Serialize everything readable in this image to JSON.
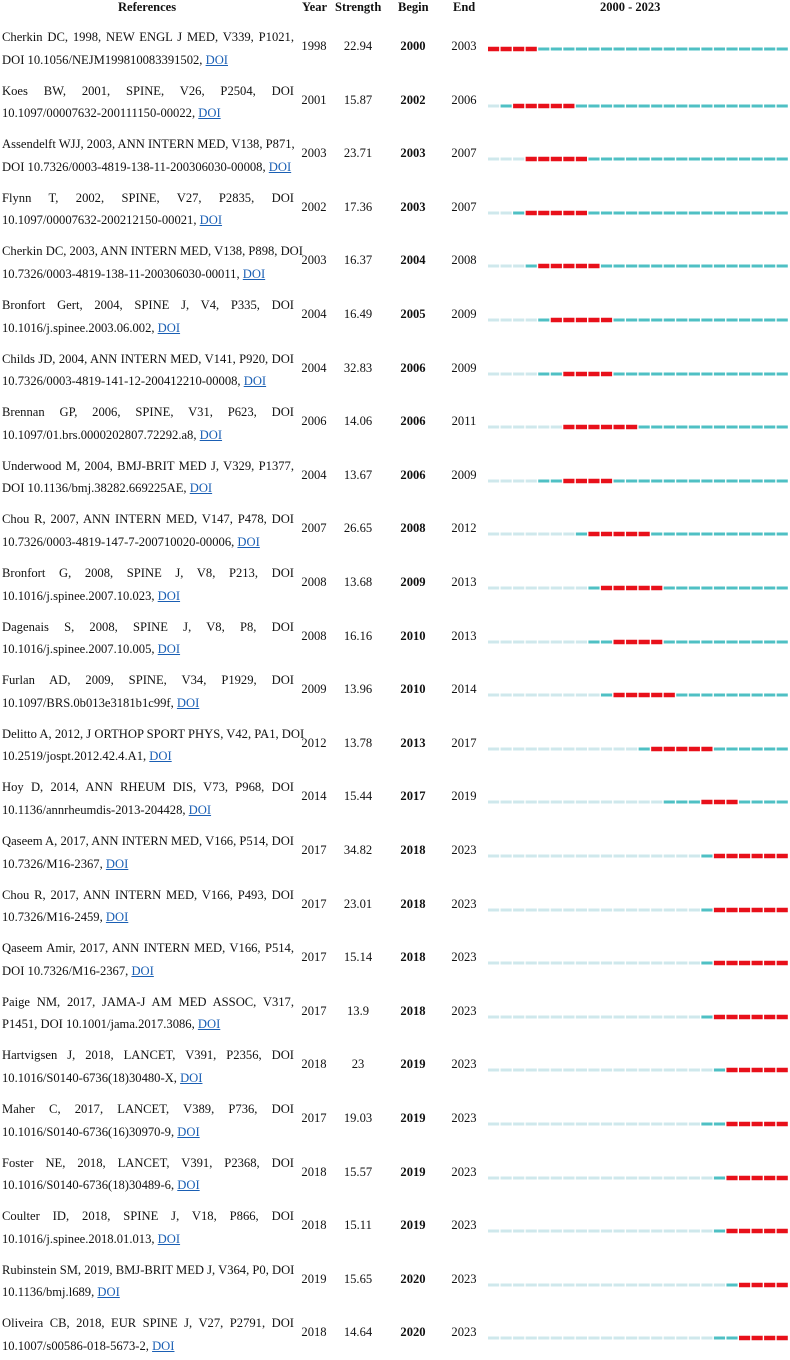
{
  "header": {
    "references": "References",
    "year": "Year",
    "strength": "Strength",
    "begin": "Begin",
    "end": "End",
    "timeline": "2000 - 2023"
  },
  "doi_label": "DOI",
  "colors": {
    "before_publication": "#cfe8ec",
    "active": "#4fc0c4",
    "burst": "#e8101a"
  },
  "chart_data": {
    "type": "table",
    "title": "",
    "timeline_start": 2000,
    "timeline_end": 2023,
    "columns": [
      "References",
      "Year",
      "Strength",
      "Begin",
      "End",
      "2000 - 2023"
    ],
    "rows": [
      {
        "ref_line1": "Cherkin DC, 1998, NEW ENGL J MED, V339, P1021,",
        "ref_line2": "DOI 10.1056/NEJM199810083391502,",
        "year": 1998,
        "strength": 22.94,
        "begin": 2000,
        "end": 2003
      },
      {
        "ref_line1": "Koes BW, 2001, SPINE, V26, P2504, DOI",
        "ref_line2": "10.1097/00007632-200111150-00022,",
        "year": 2001,
        "strength": 15.87,
        "begin": 2002,
        "end": 2006
      },
      {
        "ref_line1": "Assendelft WJJ, 2003, ANN INTERN MED, V138, P871,",
        "ref_line2": "DOI 10.7326/0003-4819-138-11-200306030-00008,",
        "year": 2003,
        "strength": 23.71,
        "begin": 2003,
        "end": 2007
      },
      {
        "ref_line1": "Flynn T, 2002, SPINE, V27, P2835, DOI",
        "ref_line2": "10.1097/00007632-200212150-00021,",
        "year": 2002,
        "strength": 17.36,
        "begin": 2003,
        "end": 2007
      },
      {
        "ref_line1": "Cherkin DC, 2003, ANN INTERN MED, V138, P898, DOI",
        "ref_line2": "10.7326/0003-4819-138-11-200306030-00011,",
        "year": 2003,
        "strength": 16.37,
        "begin": 2004,
        "end": 2008
      },
      {
        "ref_line1": "Bronfort Gert, 2004, SPINE J, V4, P335, DOI",
        "ref_line2": "10.1016/j.spinee.2003.06.002,",
        "year": 2004,
        "strength": 16.49,
        "begin": 2005,
        "end": 2009
      },
      {
        "ref_line1": "Childs JD, 2004, ANN INTERN MED, V141, P920, DOI",
        "ref_line2": "10.7326/0003-4819-141-12-200412210-00008,",
        "year": 2004,
        "strength": 32.83,
        "begin": 2006,
        "end": 2009
      },
      {
        "ref_line1": "Brennan GP, 2006, SPINE, V31, P623, DOI",
        "ref_line2": "10.1097/01.brs.0000202807.72292.a8,",
        "year": 2006,
        "strength": 14.06,
        "begin": 2006,
        "end": 2011
      },
      {
        "ref_line1": "Underwood M, 2004, BMJ-BRIT MED J, V329, P1377,",
        "ref_line2": "DOI 10.1136/bmj.38282.669225AE,",
        "year": 2004,
        "strength": 13.67,
        "begin": 2006,
        "end": 2009
      },
      {
        "ref_line1": "Chou R, 2007, ANN INTERN MED, V147, P478, DOI",
        "ref_line2": "10.7326/0003-4819-147-7-200710020-00006,",
        "year": 2007,
        "strength": 26.65,
        "begin": 2008,
        "end": 2012
      },
      {
        "ref_line1": "Bronfort G, 2008, SPINE J, V8, P213, DOI",
        "ref_line2": "10.1016/j.spinee.2007.10.023,",
        "year": 2008,
        "strength": 13.68,
        "begin": 2009,
        "end": 2013
      },
      {
        "ref_line1": "Dagenais S, 2008, SPINE J, V8, P8, DOI",
        "ref_line2": "10.1016/j.spinee.2007.10.005,",
        "year": 2008,
        "strength": 16.16,
        "begin": 2010,
        "end": 2013
      },
      {
        "ref_line1": "Furlan AD, 2009, SPINE, V34, P1929, DOI",
        "ref_line2": "10.1097/BRS.0b013e3181b1c99f,",
        "year": 2009,
        "strength": 13.96,
        "begin": 2010,
        "end": 2014
      },
      {
        "ref_line1": "Delitto A, 2012, J ORTHOP SPORT PHYS, V42, PA1, DOI",
        "ref_line2": "10.2519/jospt.2012.42.4.A1,",
        "year": 2012,
        "strength": 13.78,
        "begin": 2013,
        "end": 2017
      },
      {
        "ref_line1": "Hoy D, 2014, ANN RHEUM DIS, V73, P968, DOI",
        "ref_line2": "10.1136/annrheumdis-2013-204428,",
        "year": 2014,
        "strength": 15.44,
        "begin": 2017,
        "end": 2019
      },
      {
        "ref_line1": "Qaseem A, 2017, ANN INTERN MED, V166, P514, DOI",
        "ref_line2": "10.7326/M16-2367,",
        "year": 2017,
        "strength": 34.82,
        "begin": 2018,
        "end": 2023
      },
      {
        "ref_line1": "Chou R, 2017, ANN INTERN MED, V166, P493, DOI",
        "ref_line2": "10.7326/M16-2459,",
        "year": 2017,
        "strength": 23.01,
        "begin": 2018,
        "end": 2023
      },
      {
        "ref_line1": "Qaseem Amir, 2017, ANN INTERN MED, V166, P514,",
        "ref_line2": "DOI 10.7326/M16-2367,",
        "year": 2017,
        "strength": 15.14,
        "begin": 2018,
        "end": 2023
      },
      {
        "ref_line1": "Paige NM, 2017, JAMA-J AM MED ASSOC, V317,",
        "ref_line2": "P1451, DOI 10.1001/jama.2017.3086,",
        "year": 2017,
        "strength": 13.9,
        "begin": 2018,
        "end": 2023
      },
      {
        "ref_line1": "Hartvigsen J, 2018, LANCET, V391, P2356, DOI",
        "ref_line2": "10.1016/S0140-6736(18)30480-X,",
        "year": 2018,
        "strength": 23,
        "begin": 2019,
        "end": 2023
      },
      {
        "ref_line1": "Maher C, 2017, LANCET, V389, P736, DOI",
        "ref_line2": "10.1016/S0140-6736(16)30970-9,",
        "year": 2017,
        "strength": 19.03,
        "begin": 2019,
        "end": 2023
      },
      {
        "ref_line1": "Foster NE, 2018, LANCET, V391, P2368, DOI",
        "ref_line2": "10.1016/S0140-6736(18)30489-6,",
        "year": 2018,
        "strength": 15.57,
        "begin": 2019,
        "end": 2023
      },
      {
        "ref_line1": "Coulter ID, 2018, SPINE J, V18, P866, DOI",
        "ref_line2": "10.1016/j.spinee.2018.01.013,",
        "year": 2018,
        "strength": 15.11,
        "begin": 2019,
        "end": 2023
      },
      {
        "ref_line1": "Rubinstein SM, 2019, BMJ-BRIT MED J, V364, P0, DOI",
        "ref_line2": "10.1136/bmj.l689,",
        "year": 2019,
        "strength": 15.65,
        "begin": 2020,
        "end": 2023
      },
      {
        "ref_line1": "Oliveira CB, 2018, EUR SPINE J, V27, P2791, DOI",
        "ref_line2": "10.1007/s00586-018-5673-2,",
        "year": 2018,
        "strength": 14.64,
        "begin": 2020,
        "end": 2023
      }
    ]
  }
}
